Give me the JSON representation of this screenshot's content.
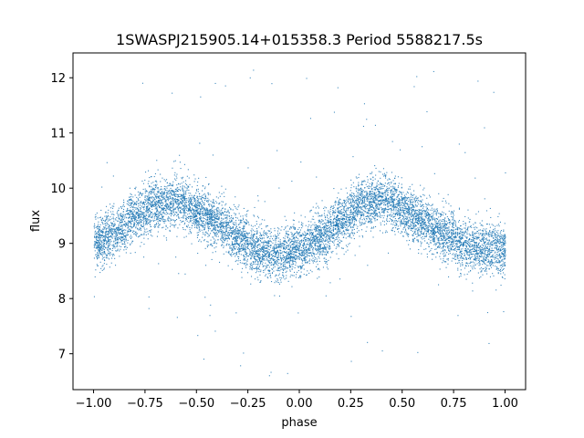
{
  "chart_data": {
    "type": "scatter",
    "title": "1SWASPJ215905.14+015358.3 Period 5588217.5s",
    "xlabel": "phase",
    "ylabel": "flux",
    "xlim": [
      -1.1,
      1.1
    ],
    "ylim": [
      6.35,
      12.45
    ],
    "x_ticks": [
      -1.0,
      -0.75,
      -0.5,
      -0.25,
      0.0,
      0.25,
      0.5,
      0.75,
      1.0
    ],
    "x_tick_labels": [
      "−1.00",
      "−0.75",
      "−0.50",
      "−0.25",
      "0.00",
      "0.25",
      "0.50",
      "0.75",
      "1.00"
    ],
    "y_ticks": [
      7,
      8,
      9,
      10,
      11,
      12
    ],
    "y_tick_labels": [
      "7",
      "8",
      "9",
      "10",
      "11",
      "12"
    ],
    "grid": false,
    "marker_color": "#1f77b4",
    "series": [
      {
        "x_range": [
          -1.0,
          1.0
        ],
        "trend": {
          "phase": [
            -1.0,
            -0.9,
            -0.8,
            -0.7,
            -0.6,
            -0.5,
            -0.4,
            -0.3,
            -0.2,
            -0.1,
            0.0,
            0.1,
            0.2,
            0.3,
            0.4,
            0.5,
            0.6,
            0.7,
            0.8,
            0.9,
            1.0
          ],
          "flux": [
            9.0,
            9.2,
            9.5,
            9.7,
            9.8,
            9.6,
            9.4,
            9.1,
            8.9,
            8.8,
            8.9,
            9.1,
            9.4,
            9.7,
            9.8,
            9.6,
            9.4,
            9.2,
            9.0,
            8.9,
            8.9
          ]
        },
        "spread": 0.5,
        "outlier_range": [
          6.6,
          12.2
        ]
      }
    ]
  }
}
